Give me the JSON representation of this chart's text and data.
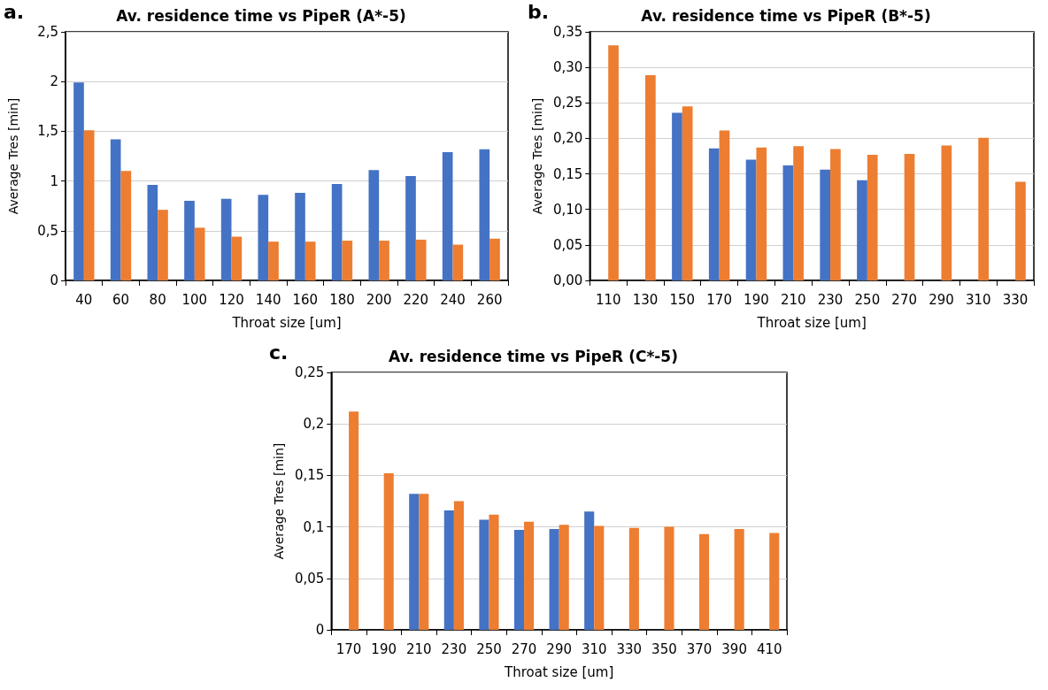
{
  "chart_data": [
    {
      "type": "bar",
      "title": "Av. residence time vs PipeR (A*-5)",
      "xlabel": "Throat size [um]",
      "ylabel": "Average Tres [min]",
      "annotations": [
        "a."
      ],
      "categories": [
        "40",
        "60",
        "80",
        "100",
        "120",
        "140",
        "160",
        "180",
        "200",
        "220",
        "240",
        "260"
      ],
      "series": [
        {
          "color": "#4472c4",
          "values": [
            1.99,
            1.42,
            0.96,
            0.8,
            0.82,
            0.86,
            0.88,
            0.97,
            1.11,
            1.05,
            1.29,
            1.32
          ]
        },
        {
          "color": "#ed7d31",
          "values": [
            1.51,
            1.1,
            0.71,
            0.53,
            0.44,
            0.39,
            0.39,
            0.4,
            0.4,
            0.41,
            0.36,
            0.42
          ]
        }
      ],
      "ylim": [
        0,
        2.5
      ],
      "yticks": [
        0,
        {
          "value": 0.5,
          "label": "0,5"
        },
        1,
        {
          "value": 1.5,
          "label": "1,5"
        },
        2,
        {
          "value": 2.5,
          "label": "2,5"
        }
      ],
      "grid": "y"
    },
    {
      "type": "bar",
      "title": "Av. residence time vs PipeR (B*-5)",
      "xlabel": "Throat size [um]",
      "ylabel": "Average Tres [min]",
      "annotations": [
        "b."
      ],
      "categories": [
        "110",
        "130",
        "150",
        "170",
        "190",
        "210",
        "230",
        "250",
        "270",
        "290",
        "310",
        "330"
      ],
      "series": [
        {
          "color": "#4472c4",
          "values": [
            null,
            null,
            0.236,
            0.186,
            0.17,
            0.162,
            0.156,
            0.141,
            null,
            null,
            null,
            null
          ]
        },
        {
          "color": "#ed7d31",
          "values": [
            0.331,
            0.289,
            0.245,
            0.211,
            0.187,
            0.189,
            0.185,
            0.177,
            0.178,
            0.19,
            0.201,
            0.139
          ]
        }
      ],
      "ylim": [
        0,
        0.35
      ],
      "yticks": [
        {
          "value": 0,
          "label": "0,00"
        },
        {
          "value": 0.05,
          "label": "0,05"
        },
        {
          "value": 0.1,
          "label": "0,10"
        },
        {
          "value": 0.15,
          "label": "0,15"
        },
        {
          "value": 0.2,
          "label": "0,20"
        },
        {
          "value": 0.25,
          "label": "0,25"
        },
        {
          "value": 0.3,
          "label": "0,30"
        },
        {
          "value": 0.35,
          "label": "0,35"
        }
      ],
      "grid": "y"
    },
    {
      "type": "bar",
      "title": "Av. residence time vs PipeR (C*-5)",
      "xlabel": "Throat size [um]",
      "ylabel": "Average Tres [min]",
      "annotations": [
        "c."
      ],
      "categories": [
        "170",
        "190",
        "210",
        "230",
        "250",
        "270",
        "290",
        "310",
        "330",
        "350",
        "370",
        "390",
        "410"
      ],
      "series": [
        {
          "color": "#4472c4",
          "values": [
            null,
            null,
            0.132,
            0.116,
            0.107,
            0.097,
            0.098,
            0.115,
            null,
            null,
            null,
            null,
            null
          ]
        },
        {
          "color": "#ed7d31",
          "values": [
            0.212,
            0.152,
            0.132,
            0.125,
            0.112,
            0.105,
            0.102,
            0.101,
            0.099,
            0.1,
            0.093,
            0.098,
            0.094
          ]
        }
      ],
      "ylim": [
        0,
        0.25
      ],
      "yticks": [
        0,
        {
          "value": 0.05,
          "label": "0,05"
        },
        {
          "value": 0.1,
          "label": "0,1"
        },
        {
          "value": 0.15,
          "label": "0,15"
        },
        {
          "value": 0.2,
          "label": "0,2"
        },
        {
          "value": 0.25,
          "label": "0,25"
        }
      ],
      "grid": "y"
    }
  ]
}
